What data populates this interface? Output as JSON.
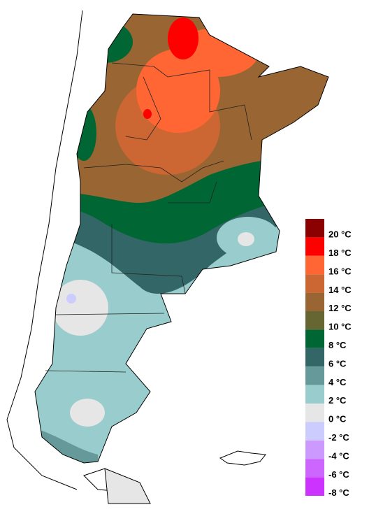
{
  "legend": {
    "items": [
      {
        "label": "20 °C",
        "color": "#8b0000"
      },
      {
        "label": "18 °C",
        "color": "#ff0000"
      },
      {
        "label": "16 °C",
        "color": "#ff6633"
      },
      {
        "label": "14 °C",
        "color": "#cc6633"
      },
      {
        "label": "12 °C",
        "color": "#996633"
      },
      {
        "label": "10 °C",
        "color": "#666633"
      },
      {
        "label": "8 °C",
        "color": "#006633"
      },
      {
        "label": "6 °C",
        "color": "#336666"
      },
      {
        "label": "4 °C",
        "color": "#669999"
      },
      {
        "label": "2 °C",
        "color": "#99cccc"
      },
      {
        "label": "0 °C",
        "color": "#e6e6e6"
      },
      {
        "label": "-2 °C",
        "color": "#ccccff"
      },
      {
        "label": "-4 °C",
        "color": "#cc99ff"
      },
      {
        "label": "-6 °C",
        "color": "#cc66ff"
      },
      {
        "label": "-8 °C",
        "color": "#cc33ff"
      }
    ]
  }
}
